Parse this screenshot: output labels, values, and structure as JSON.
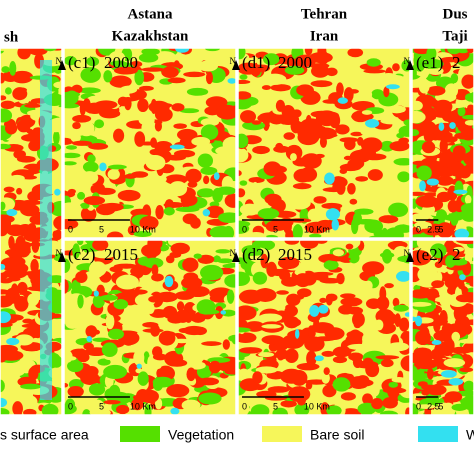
{
  "header": {
    "columns": [
      {
        "lines": [
          "sh"
        ]
      },
      {
        "lines": [
          "Astana",
          "Kazakhstan"
        ]
      },
      {
        "lines": [
          "Tehran",
          "Iran"
        ]
      },
      {
        "lines": [
          "Dus",
          "Taji"
        ]
      }
    ]
  },
  "panels": [
    {
      "label": "(c1)",
      "year": "2000",
      "north": "N",
      "scale": [
        "0",
        "5",
        "10 Km"
      ]
    },
    {
      "label": "(d1)",
      "year": "2000",
      "north": "N",
      "scale": [
        "0",
        "5",
        "10 Km"
      ]
    },
    {
      "label": "(e1)",
      "year": "2",
      "north": "N",
      "scale": [
        "0",
        "2.5",
        "5"
      ]
    },
    {
      "label": "(c2)",
      "year": "2015",
      "north": "N",
      "scale": [
        "0",
        "5",
        "10 Km"
      ]
    },
    {
      "label": "(d2)",
      "year": "2015",
      "north": "N",
      "scale": [
        "0",
        "5",
        "10 Km"
      ]
    },
    {
      "label": "(e2)",
      "year": "2",
      "north": "N",
      "scale": [
        "0",
        "2.5",
        "5"
      ]
    }
  ],
  "legend": [
    {
      "label": "s surface area",
      "color": "#ff2a00"
    },
    {
      "label": "Vegetation",
      "color": "#55e000"
    },
    {
      "label": "Bare soil",
      "color": "#f6f65a"
    },
    {
      "label": "Wat",
      "color": "#33e0f0"
    }
  ]
}
